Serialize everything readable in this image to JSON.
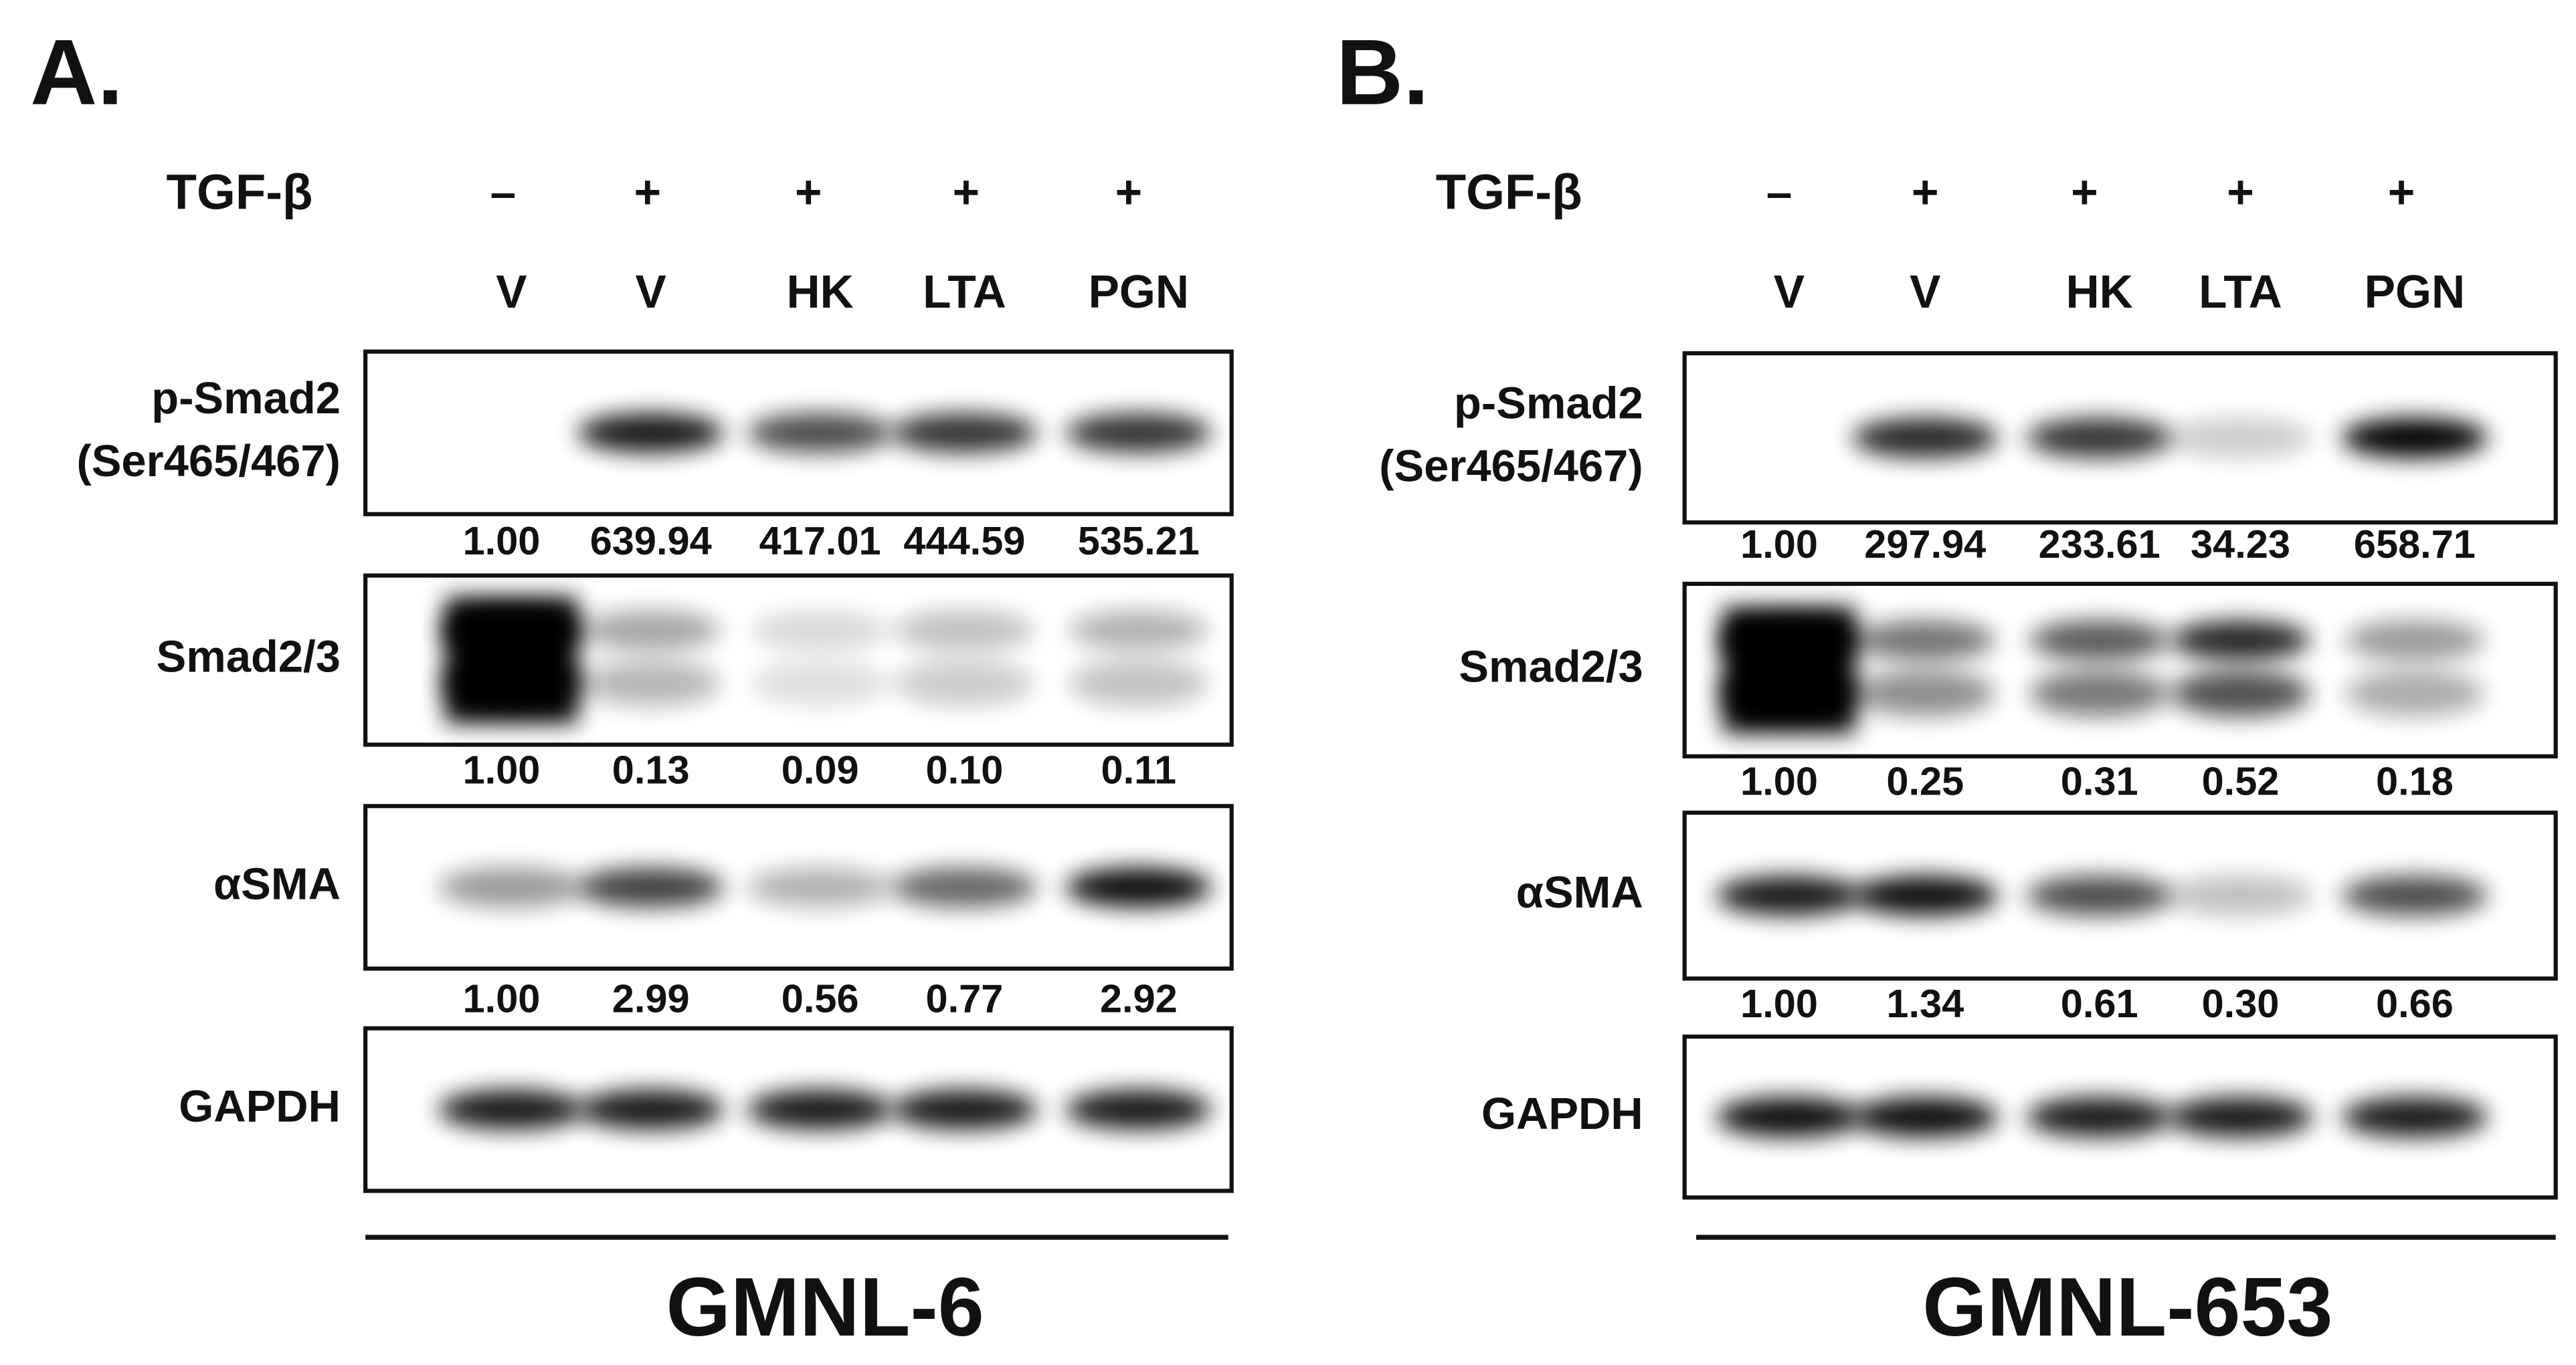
{
  "panels": [
    {
      "label": "A.",
      "treatment_label": "TGF-β",
      "treatments": [
        "–",
        "+",
        "+",
        "+",
        "+"
      ],
      "lanes": [
        "V",
        "V",
        "HK",
        "LTA",
        "PGN"
      ],
      "blots": [
        {
          "name": [
            "p-Smad2",
            "(Ser465/467)"
          ],
          "quant": [
            "1.00",
            "639.94",
            "417.01",
            "444.59",
            "535.21"
          ]
        },
        {
          "name": [
            "Smad2/3"
          ],
          "quant": [
            "1.00",
            "0.13",
            "0.09",
            "0.10",
            "0.11"
          ]
        },
        {
          "name": [
            "αSMA"
          ],
          "quant": [
            "1.00",
            "2.99",
            "0.56",
            "0.77",
            "2.92"
          ]
        },
        {
          "name": [
            "GAPDH"
          ]
        }
      ],
      "cell_line": "GMNL-6"
    },
    {
      "label": "B.",
      "treatment_label": "TGF-β",
      "treatments": [
        "–",
        "+",
        "+",
        "+",
        "+"
      ],
      "lanes": [
        "V",
        "V",
        "HK",
        "LTA",
        "PGN"
      ],
      "blots": [
        {
          "name": [
            "p-Smad2",
            "(Ser465/467)"
          ],
          "quant": [
            "1.00",
            "297.94",
            "233.61",
            "34.23",
            "658.71"
          ]
        },
        {
          "name": [
            "Smad2/3"
          ],
          "quant": [
            "1.00",
            "0.25",
            "0.31",
            "0.52",
            "0.18"
          ]
        },
        {
          "name": [
            "αSMA"
          ],
          "quant": [
            "1.00",
            "1.34",
            "0.61",
            "0.30",
            "0.66"
          ]
        },
        {
          "name": [
            "GAPDH"
          ]
        }
      ],
      "cell_line": "GMNL-653"
    }
  ]
}
